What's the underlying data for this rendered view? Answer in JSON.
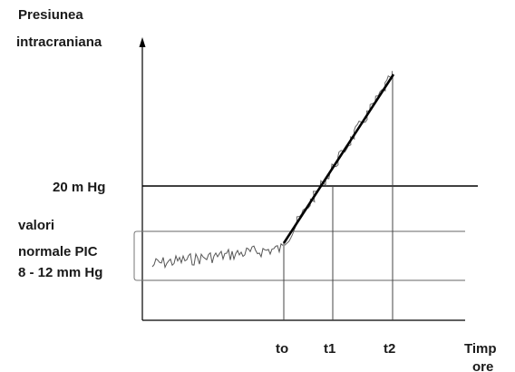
{
  "y_axis_label": [
    "Presiunea",
    "intracraniana"
  ],
  "threshold_label": "20 m Hg",
  "normal_range_label": [
    "valori",
    "normale PIC",
    "8 - 12 mm Hg"
  ],
  "time_ticks": [
    "to",
    "t1",
    "t2"
  ],
  "x_axis_label": [
    "Timp",
    "ore"
  ]
}
